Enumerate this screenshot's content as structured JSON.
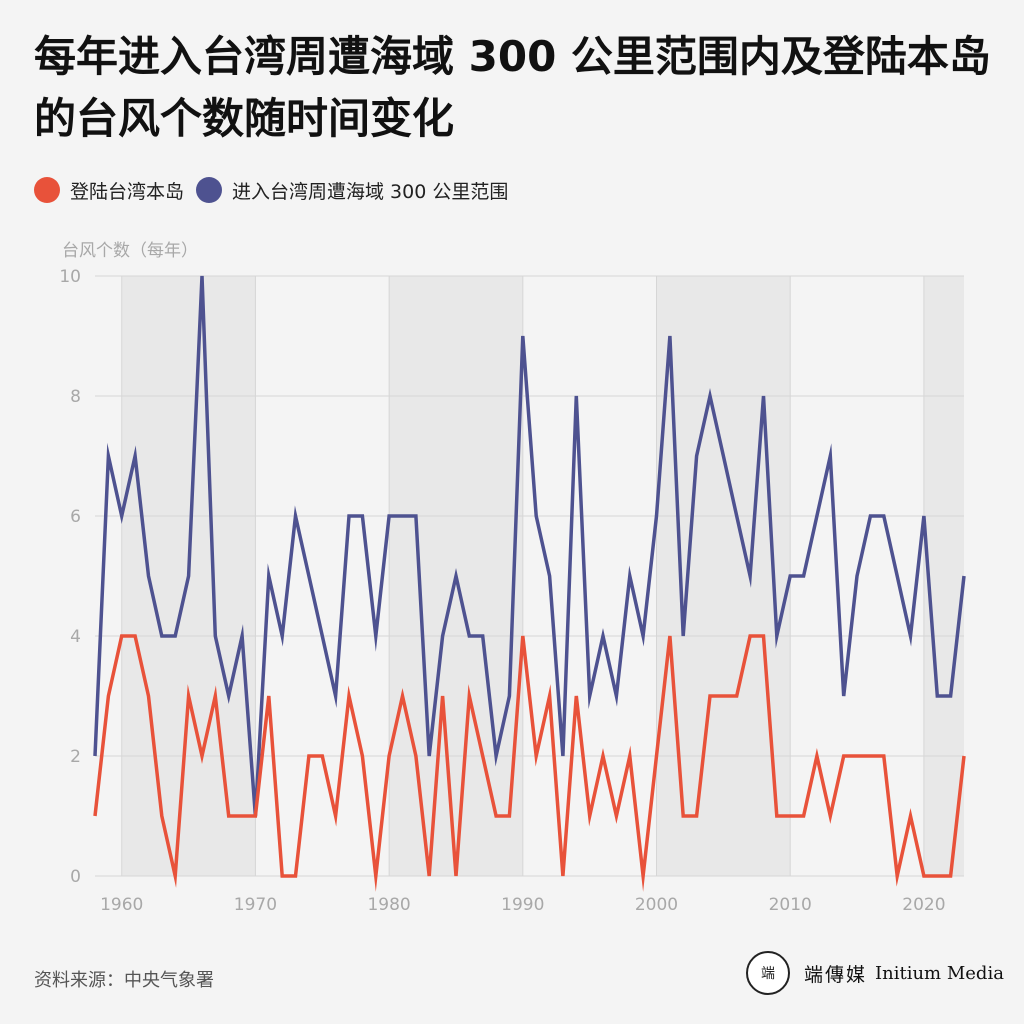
{
  "title": "每年进入台湾周遭海域 300 公里范围内及登陆本岛的台风个数随时间变化",
  "legend": [
    {
      "label": "登陆台湾本岛",
      "color": "#e8523a"
    },
    {
      "label": "进入台湾周遭海域 300 公里范围",
      "color": "#4e5290"
    }
  ],
  "source": "资料来源：中央气象署",
  "brand": {
    "logo_text": "端",
    "name_zh": "端傳媒",
    "name_en": "Initium Media"
  },
  "chart_data": {
    "type": "line",
    "ylabel": "台风个数（每年）",
    "ylim": [
      0,
      10
    ],
    "xlim": [
      1958,
      2023
    ],
    "y_ticks": [
      0,
      2,
      4,
      6,
      8,
      10
    ],
    "x_ticks": [
      1960,
      1970,
      1980,
      1990,
      2000,
      2010,
      2020
    ],
    "shaded_decades": [
      [
        1960,
        1970
      ],
      [
        1980,
        1990
      ],
      [
        2000,
        2010
      ],
      [
        2020,
        2023
      ]
    ],
    "grid": true,
    "x": [
      1958,
      1959,
      1960,
      1961,
      1962,
      1963,
      1964,
      1965,
      1966,
      1967,
      1968,
      1969,
      1970,
      1971,
      1972,
      1973,
      1974,
      1975,
      1976,
      1977,
      1978,
      1979,
      1980,
      1981,
      1982,
      1983,
      1984,
      1985,
      1986,
      1987,
      1988,
      1989,
      1990,
      1991,
      1992,
      1993,
      1994,
      1995,
      1996,
      1997,
      1998,
      1999,
      2000,
      2001,
      2002,
      2003,
      2004,
      2005,
      2006,
      2007,
      2008,
      2009,
      2010,
      2011,
      2012,
      2013,
      2014,
      2015,
      2016,
      2017,
      2018,
      2019,
      2020,
      2021,
      2022,
      2023
    ],
    "series": [
      {
        "name": "进入台湾周遭海域 300 公里范围",
        "color": "#4e5290",
        "values": [
          2,
          7,
          6,
          7,
          5,
          4,
          4,
          5,
          10,
          4,
          3,
          4,
          1,
          5,
          4,
          6,
          5,
          4,
          3,
          6,
          6,
          4,
          6,
          6,
          6,
          2,
          4,
          5,
          4,
          4,
          2,
          3,
          9,
          6,
          5,
          2,
          8,
          3,
          4,
          3,
          5,
          4,
          6,
          9,
          4,
          7,
          8,
          7,
          6,
          5,
          8,
          4,
          5,
          5,
          6,
          7,
          3,
          5,
          6,
          6,
          5,
          4,
          6,
          3,
          3,
          5
        ]
      },
      {
        "name": "登陆台湾本岛",
        "color": "#e8523a",
        "values": [
          1,
          3,
          4,
          4,
          3,
          1,
          0,
          3,
          2,
          3,
          1,
          1,
          1,
          3,
          0,
          0,
          2,
          2,
          1,
          3,
          2,
          0,
          2,
          3,
          2,
          0,
          3,
          0,
          3,
          2,
          1,
          1,
          4,
          2,
          3,
          0,
          3,
          1,
          2,
          1,
          2,
          0,
          2,
          4,
          1,
          1,
          3,
          3,
          3,
          4,
          4,
          1,
          1,
          1,
          2,
          1,
          2,
          2,
          2,
          2,
          0,
          1,
          0,
          0,
          0,
          2
        ]
      }
    ]
  }
}
